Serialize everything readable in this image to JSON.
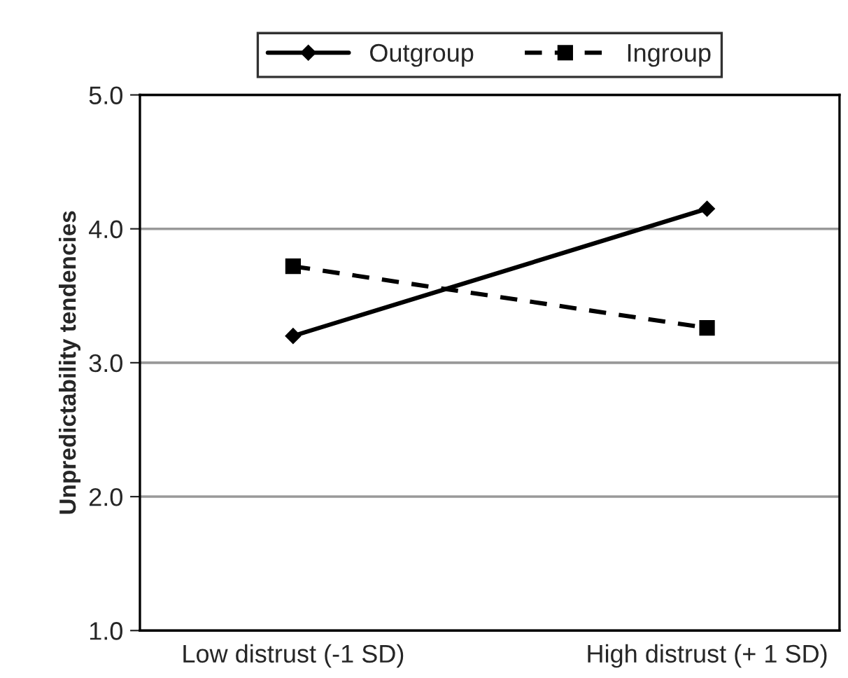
{
  "chart_data": {
    "type": "line",
    "ylabel": "Unpredictability tendencies",
    "categories": [
      "Low distrust (-1 SD)",
      "High distrust (+ 1 SD)"
    ],
    "series": [
      {
        "name": "Outgroup",
        "color": "#000000",
        "values": [
          3.2,
          4.15
        ],
        "marker": "diamond",
        "line_style": "solid"
      },
      {
        "name": "Ingroup",
        "color": "#000000",
        "values": [
          3.72,
          3.26
        ],
        "marker": "square",
        "line_style": "dashed"
      }
    ],
    "ylim": [
      1.0,
      5.0
    ],
    "yticks": [
      {
        "value": 1,
        "label": "1.0"
      },
      {
        "value": 2,
        "label": "2.0"
      },
      {
        "value": 3,
        "label": "3.0"
      },
      {
        "value": 4,
        "label": "4.0"
      },
      {
        "value": 5,
        "label": "5.0"
      }
    ],
    "grid": "y",
    "legend": "top"
  }
}
